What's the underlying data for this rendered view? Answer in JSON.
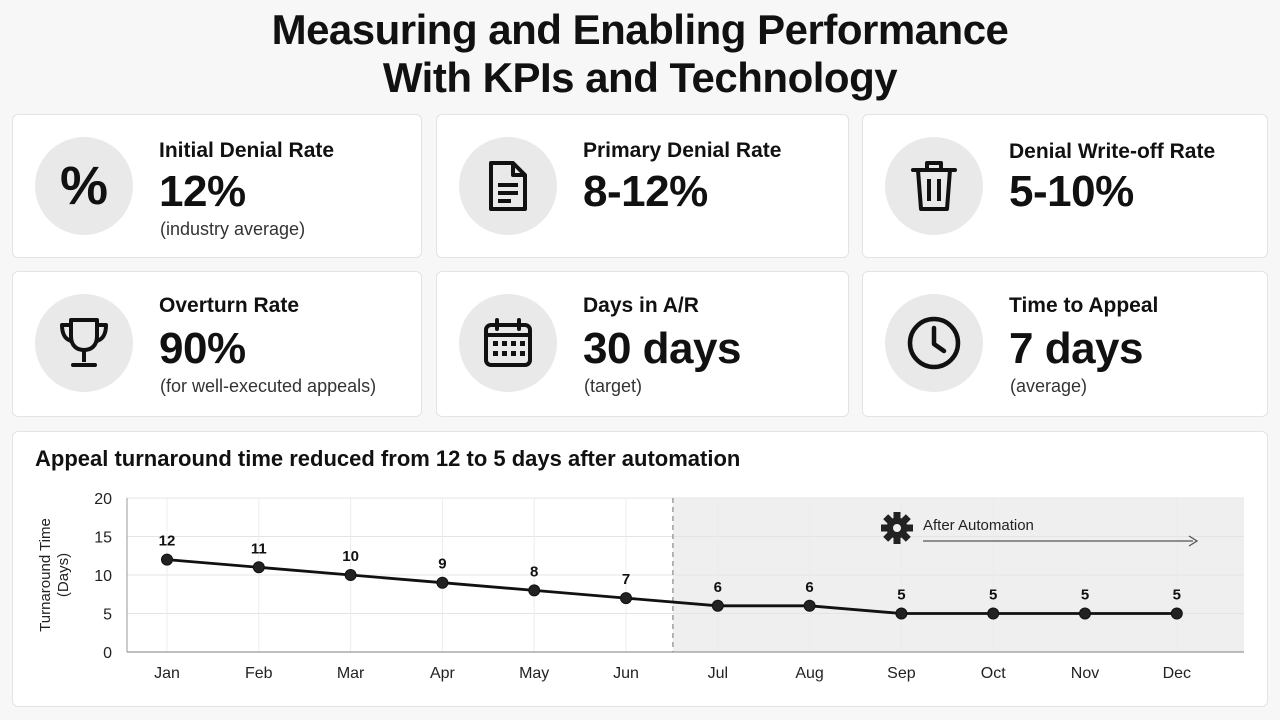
{
  "title": {
    "line1": "Measuring and Enabling Performance",
    "line2": "With KPIs and Technology"
  },
  "kpis": [
    {
      "label": "Initial Denial Rate",
      "value": "12%",
      "note": "(industry average)",
      "icon": "percent-icon"
    },
    {
      "label": "Primary Denial Rate",
      "value": "8-12%",
      "note": "",
      "icon": "document-icon"
    },
    {
      "label": "Denial Write-off Rate",
      "value": "5-10%",
      "note": "",
      "icon": "trash-icon"
    },
    {
      "label": "Overturn Rate",
      "value": "90%",
      "note": "(for well-executed appeals)",
      "icon": "trophy-icon"
    },
    {
      "label": "Days in A/R",
      "value": "30 days",
      "note": "(target)",
      "icon": "calendar-icon"
    },
    {
      "label": "Time to Appeal",
      "value": "7 days",
      "note": "(average)",
      "icon": "clock-icon"
    }
  ],
  "chart_data": {
    "type": "line",
    "title": "Appeal turnaround time reduced from 12 to 5 days after automation",
    "xlabel": "",
    "ylabel": "Turnaround Time (Days)",
    "ylabel_lines": [
      "Turnaround Time",
      "(Days)"
    ],
    "categories": [
      "Jan",
      "Feb",
      "Mar",
      "Apr",
      "May",
      "Jun",
      "Jul",
      "Aug",
      "Sep",
      "Oct",
      "Nov",
      "Dec"
    ],
    "values": [
      12,
      11,
      10,
      9,
      8,
      7,
      6,
      6,
      5,
      5,
      5,
      5
    ],
    "ylim": [
      0,
      20
    ],
    "yticks": [
      0,
      5,
      10,
      15,
      20
    ],
    "grid": true,
    "annotation": {
      "label": "After Automation",
      "icon": "gear-icon",
      "start_category": "Jul",
      "shade_color": "#efefef"
    },
    "line_color": "#111111"
  }
}
